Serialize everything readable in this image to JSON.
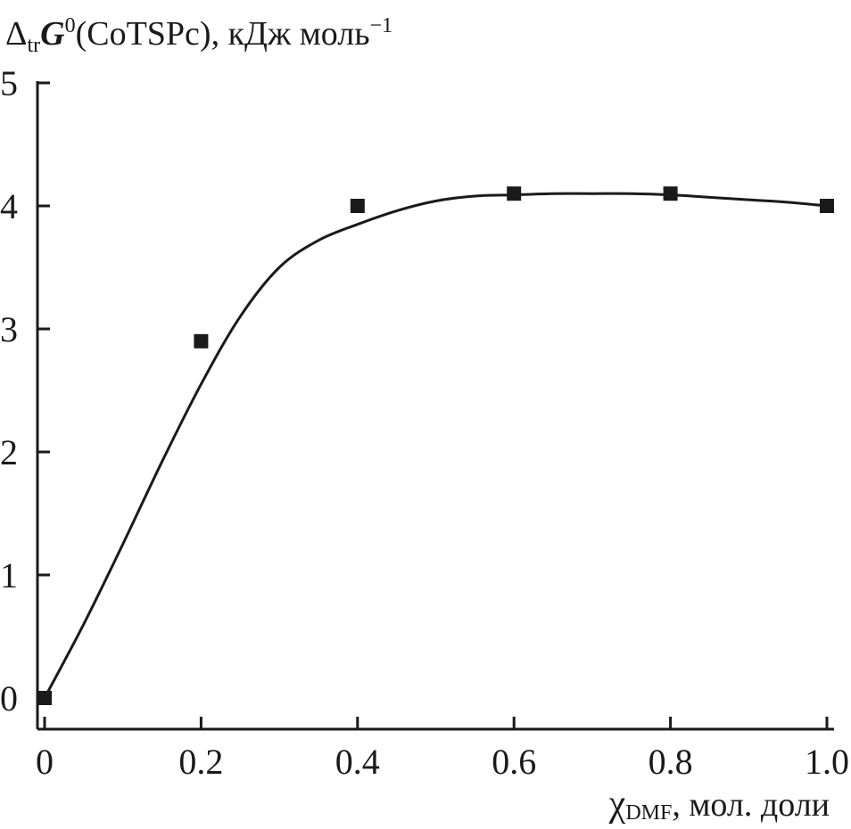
{
  "chart_data": {
    "type": "scatter",
    "title": "",
    "ylabel": {
      "delta": "Δ",
      "sub": "tr",
      "G": "G",
      "sup0": "0",
      "rest": "(CoTSPc), кДж моль",
      "sup_unit": "−1"
    },
    "xlabel": {
      "chi": "χ",
      "sub": "DMF",
      "rest": ", мол. доли"
    },
    "xlim": [
      0,
      1.0
    ],
    "ylim": [
      -0.25,
      5
    ],
    "x_ticks": [
      0,
      0.2,
      0.4,
      0.6,
      0.8,
      1.0
    ],
    "x_tick_labels": [
      "0",
      "0.2",
      "0.4",
      "0.6",
      "0.8",
      "1.0"
    ],
    "y_ticks": [
      0,
      1,
      2,
      3,
      4,
      5
    ],
    "y_tick_labels": [
      "0",
      "1",
      "2",
      "3",
      "4",
      "5"
    ],
    "grid": false,
    "series": [
      {
        "marker": "filled-square",
        "color": "#1a1a1a",
        "x": [
          0,
          0.2,
          0.4,
          0.6,
          0.8,
          1.0
        ],
        "y": [
          0,
          2.9,
          4.0,
          4.1,
          4.1,
          4.0
        ]
      }
    ],
    "fit_curve": {
      "color": "#1a1a1a",
      "x": [
        0,
        0.05,
        0.1,
        0.15,
        0.2,
        0.25,
        0.3,
        0.35,
        0.4,
        0.45,
        0.5,
        0.55,
        0.6,
        0.65,
        0.7,
        0.75,
        0.8,
        0.85,
        0.9,
        0.95,
        1.0
      ],
      "y": [
        0,
        0.6,
        1.25,
        1.92,
        2.55,
        3.1,
        3.5,
        3.72,
        3.85,
        3.96,
        4.04,
        4.08,
        4.09,
        4.1,
        4.1,
        4.1,
        4.09,
        4.07,
        4.05,
        4.03,
        4.0
      ]
    }
  }
}
